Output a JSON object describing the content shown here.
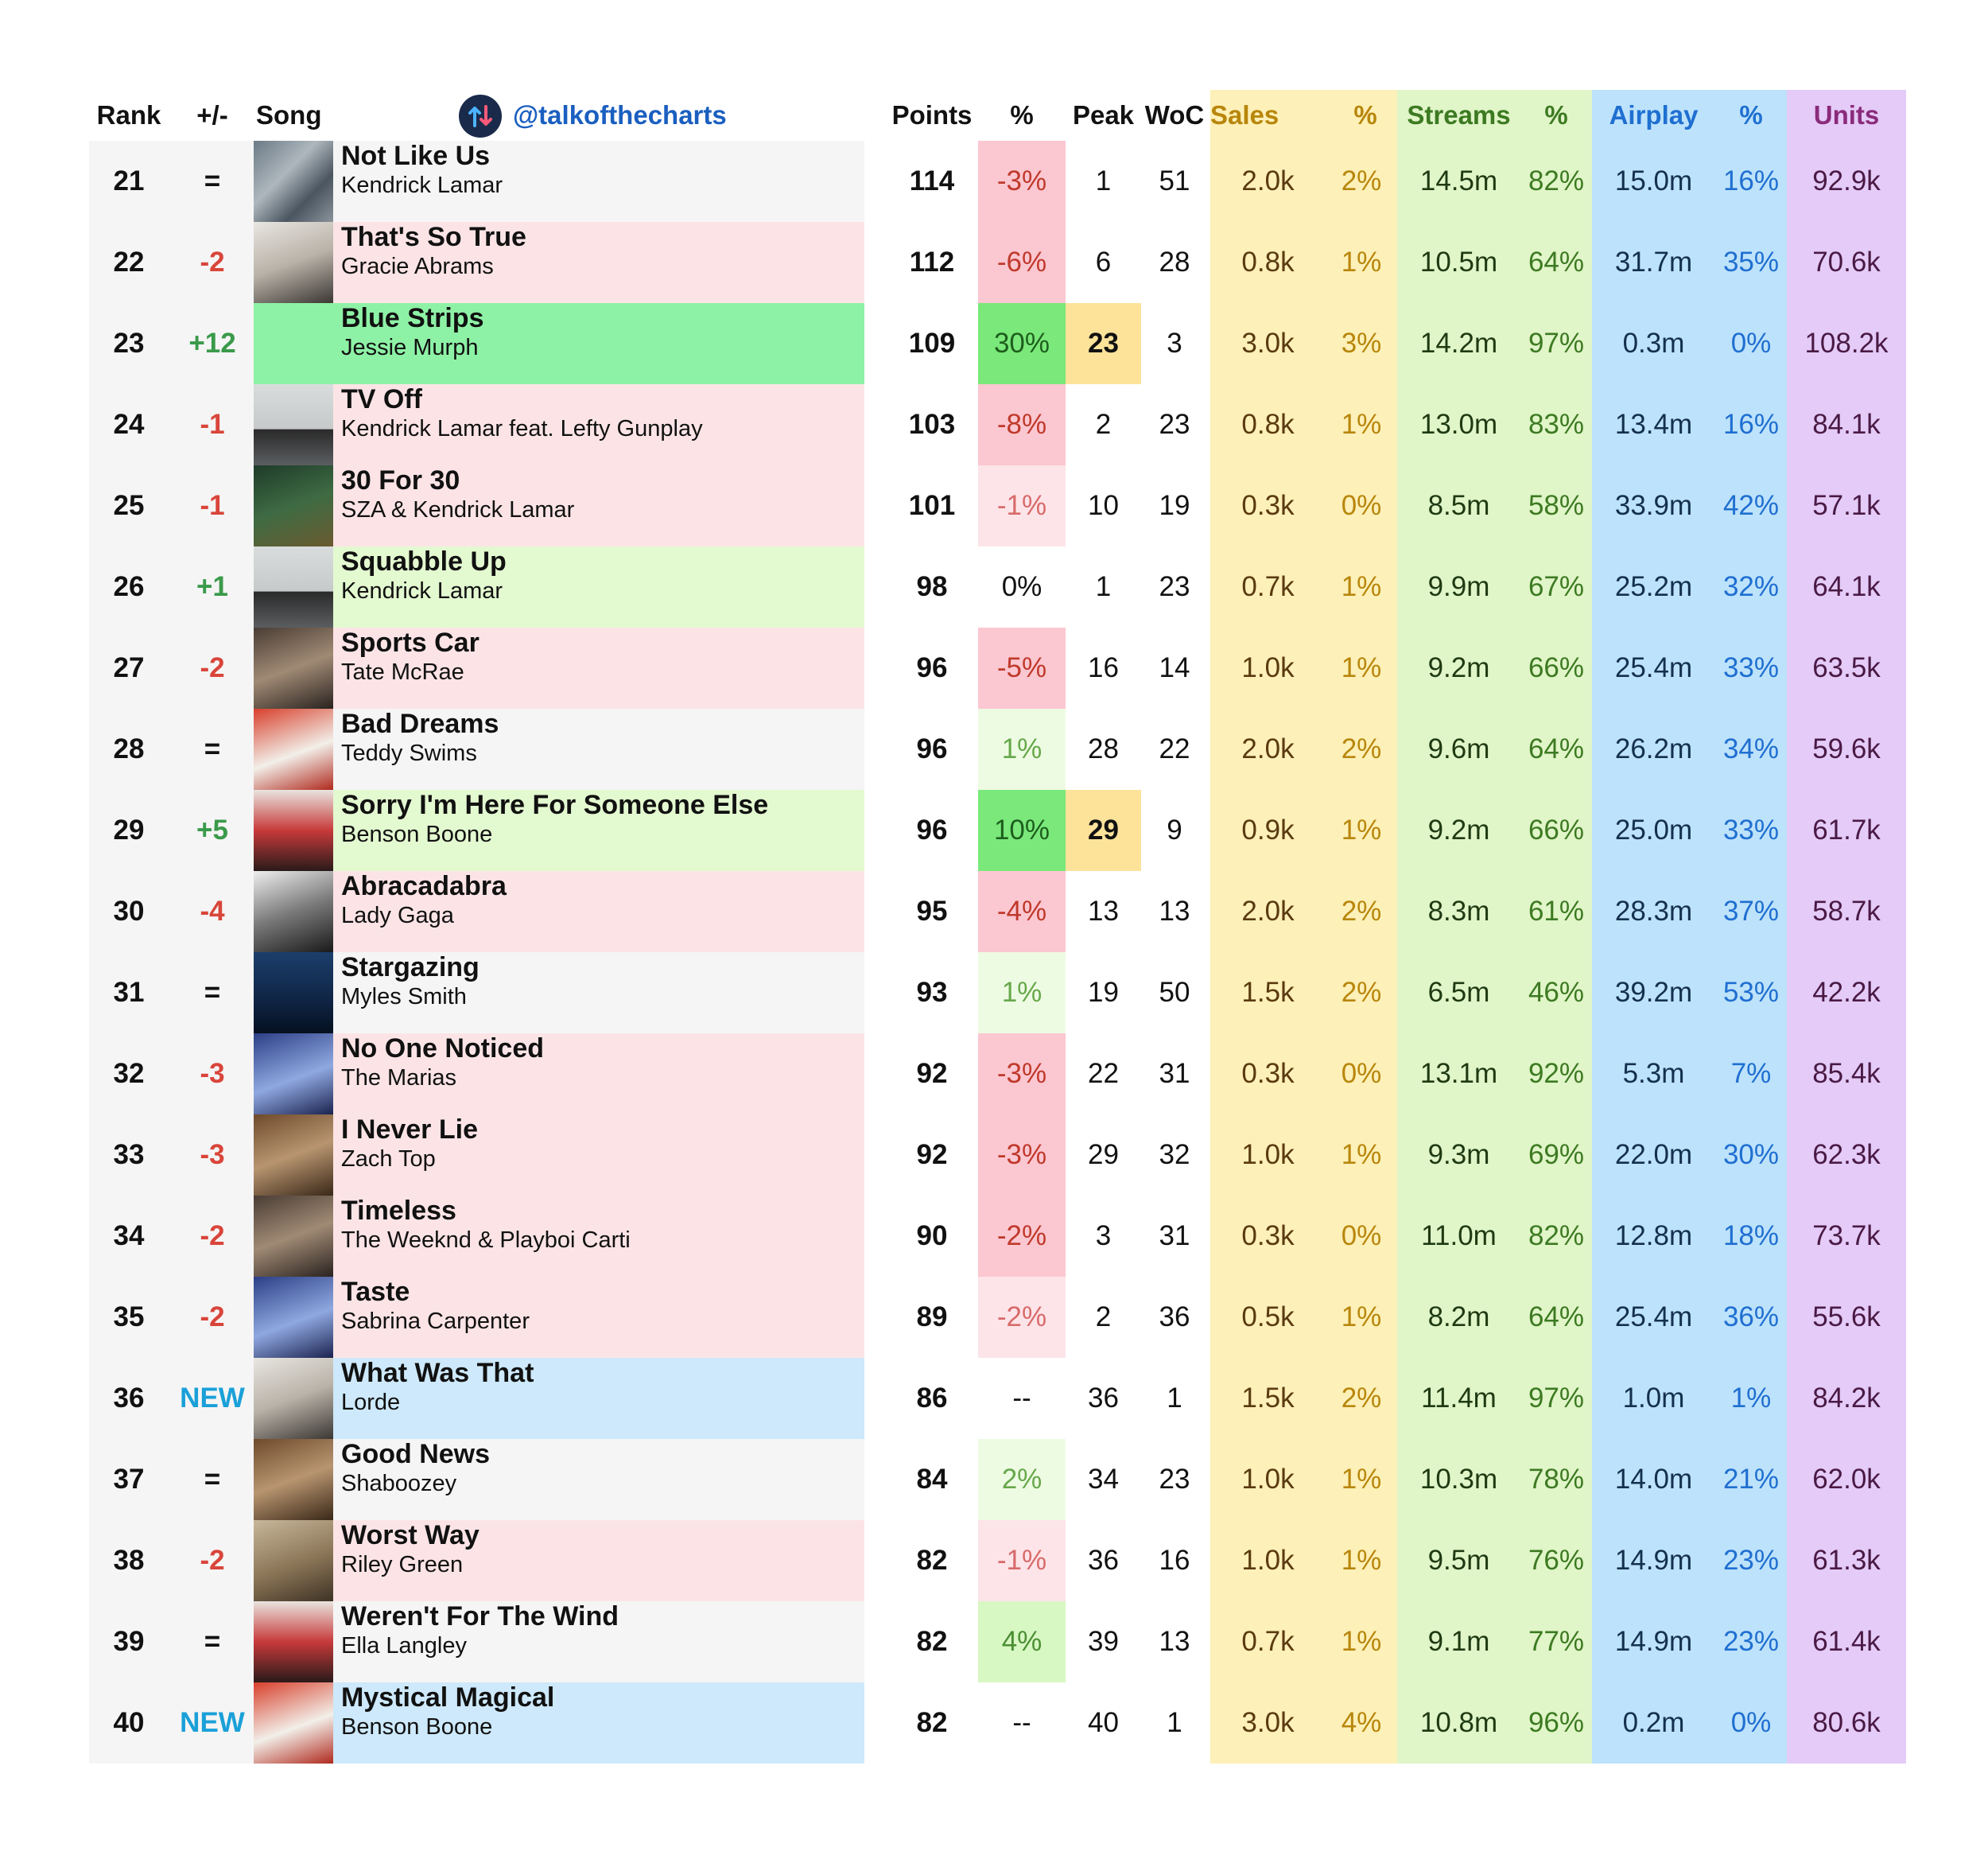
{
  "header": {
    "rank": "Rank",
    "change": "+/-",
    "song": "Song",
    "handle": "@talkofthecharts",
    "points": "Points",
    "points_pct": "%",
    "peak": "Peak",
    "woc": "WoC",
    "sales": "Sales",
    "sales_pct": "%",
    "streams": "Streams",
    "streams_pct": "%",
    "airplay": "Airplay",
    "airplay_pct": "%",
    "units": "Units"
  },
  "colors": {
    "up": "#3a9a4a",
    "down": "#d9453a",
    "new": "#1aa0d8",
    "row_down": "#fce4e6",
    "row_up": "#e3f9d0",
    "row_big_up": "#8ef2a6",
    "row_new": "#cde9fb",
    "row_same": "#f5f5f5",
    "peak_highlight": "#fde39a",
    "sales_header": "#b8860b",
    "streams_header": "#3d7a22",
    "airplay_header": "#1f6fd1",
    "units_header": "#8a2b7a"
  },
  "rows": [
    {
      "rank": "21",
      "change": "=",
      "dir": "same",
      "title": "Not Like Us",
      "artist": "Kendrick Lamar",
      "points": "114",
      "pct": "-3%",
      "pct_tone": "down2",
      "peak": "1",
      "peak_hl": false,
      "woc": "51",
      "sales": "2.0k",
      "sales_pct": "2%",
      "streams": "14.5m",
      "streams_pct": "82%",
      "airplay": "15.0m",
      "airplay_pct": "16%",
      "units": "92.9k",
      "cover": "cover-aerial",
      "rowbg": "same"
    },
    {
      "rank": "22",
      "change": "-2",
      "dir": "down",
      "title": "That's So True",
      "artist": "Gracie Abrams",
      "points": "112",
      "pct": "-6%",
      "pct_tone": "down2",
      "peak": "6",
      "peak_hl": false,
      "woc": "28",
      "sales": "0.8k",
      "sales_pct": "1%",
      "streams": "10.5m",
      "streams_pct": "64%",
      "airplay": "31.7m",
      "airplay_pct": "35%",
      "units": "70.6k",
      "cover": "cover-portrait",
      "rowbg": "down"
    },
    {
      "rank": "23",
      "change": "+12",
      "dir": "up",
      "title": "Blue Strips",
      "artist": "Jessie Murph",
      "points": "109",
      "pct": "30%",
      "pct_tone": "up2",
      "peak": "23",
      "peak_hl": true,
      "woc": "3",
      "sales": "3.0k",
      "sales_pct": "3%",
      "streams": "14.2m",
      "streams_pct": "97%",
      "airplay": "0.3m",
      "airplay_pct": "0%",
      "units": "108.2k",
      "cover": "none",
      "rowbg": "bigup"
    },
    {
      "rank": "24",
      "change": "-1",
      "dir": "down",
      "title": "TV Off",
      "artist": "Kendrick Lamar feat. Lefty Gunplay",
      "points": "103",
      "pct": "-8%",
      "pct_tone": "down2",
      "peak": "2",
      "peak_hl": false,
      "woc": "23",
      "sales": "0.8k",
      "sales_pct": "1%",
      "streams": "13.0m",
      "streams_pct": "83%",
      "airplay": "13.4m",
      "airplay_pct": "16%",
      "units": "84.1k",
      "cover": "cover-car",
      "rowbg": "down"
    },
    {
      "rank": "25",
      "change": "-1",
      "dir": "down",
      "title": "30 For 30",
      "artist": "SZA & Kendrick Lamar",
      "points": "101",
      "pct": "-1%",
      "pct_tone": "down1",
      "peak": "10",
      "peak_hl": false,
      "woc": "19",
      "sales": "0.3k",
      "sales_pct": "0%",
      "streams": "8.5m",
      "streams_pct": "58%",
      "airplay": "33.9m",
      "airplay_pct": "42%",
      "units": "57.1k",
      "cover": "cover-forest",
      "rowbg": "down"
    },
    {
      "rank": "26",
      "change": "+1",
      "dir": "up",
      "title": "Squabble Up",
      "artist": "Kendrick Lamar",
      "points": "98",
      "pct": "0%",
      "pct_tone": "none",
      "peak": "1",
      "peak_hl": false,
      "woc": "23",
      "sales": "0.7k",
      "sales_pct": "1%",
      "streams": "9.9m",
      "streams_pct": "67%",
      "airplay": "25.2m",
      "airplay_pct": "32%",
      "units": "64.1k",
      "cover": "cover-car",
      "rowbg": "up"
    },
    {
      "rank": "27",
      "change": "-2",
      "dir": "down",
      "title": "Sports Car",
      "artist": "Tate McRae",
      "points": "96",
      "pct": "-5%",
      "pct_tone": "down2",
      "peak": "16",
      "peak_hl": false,
      "woc": "14",
      "sales": "1.0k",
      "sales_pct": "1%",
      "streams": "9.2m",
      "streams_pct": "66%",
      "airplay": "25.4m",
      "airplay_pct": "33%",
      "units": "63.5k",
      "cover": "cover-dark",
      "rowbg": "down"
    },
    {
      "rank": "28",
      "change": "=",
      "dir": "same",
      "title": "Bad Dreams",
      "artist": "Teddy Swims",
      "points": "96",
      "pct": "1%",
      "pct_tone": "up1",
      "peak": "28",
      "peak_hl": false,
      "woc": "22",
      "sales": "2.0k",
      "sales_pct": "2%",
      "streams": "9.6m",
      "streams_pct": "64%",
      "airplay": "26.2m",
      "airplay_pct": "34%",
      "units": "59.6k",
      "cover": "cover-red",
      "rowbg": "same"
    },
    {
      "rank": "29",
      "change": "+5",
      "dir": "up",
      "title": "Sorry I'm Here For Someone Else",
      "artist": "Benson Boone",
      "points": "96",
      "pct": "10%",
      "pct_tone": "up2",
      "peak": "29",
      "peak_hl": true,
      "woc": "9",
      "sales": "0.9k",
      "sales_pct": "1%",
      "streams": "9.2m",
      "streams_pct": "66%",
      "airplay": "25.0m",
      "airplay_pct": "33%",
      "units": "61.7k",
      "cover": "cover-redcar",
      "rowbg": "up"
    },
    {
      "rank": "30",
      "change": "-4",
      "dir": "down",
      "title": "Abracadabra",
      "artist": "Lady Gaga",
      "points": "95",
      "pct": "-4%",
      "pct_tone": "down2",
      "peak": "13",
      "peak_hl": false,
      "woc": "13",
      "sales": "2.0k",
      "sales_pct": "2%",
      "streams": "8.3m",
      "streams_pct": "61%",
      "airplay": "28.3m",
      "airplay_pct": "37%",
      "units": "58.7k",
      "cover": "cover-bw",
      "rowbg": "down"
    },
    {
      "rank": "31",
      "change": "=",
      "dir": "same",
      "title": "Stargazing",
      "artist": "Myles Smith",
      "points": "93",
      "pct": "1%",
      "pct_tone": "up1",
      "peak": "19",
      "peak_hl": false,
      "woc": "50",
      "sales": "1.5k",
      "sales_pct": "2%",
      "streams": "6.5m",
      "streams_pct": "46%",
      "airplay": "39.2m",
      "airplay_pct": "53%",
      "units": "42.2k",
      "cover": "cover-navy",
      "rowbg": "same"
    },
    {
      "rank": "32",
      "change": "-3",
      "dir": "down",
      "title": "No One Noticed",
      "artist": "The Marias",
      "points": "92",
      "pct": "-3%",
      "pct_tone": "down2",
      "peak": "22",
      "peak_hl": false,
      "woc": "31",
      "sales": "0.3k",
      "sales_pct": "0%",
      "streams": "13.1m",
      "streams_pct": "92%",
      "airplay": "5.3m",
      "airplay_pct": "7%",
      "units": "85.4k",
      "cover": "cover-blue",
      "rowbg": "down"
    },
    {
      "rank": "33",
      "change": "-3",
      "dir": "down",
      "title": "I Never Lie",
      "artist": "Zach Top",
      "points": "92",
      "pct": "-3%",
      "pct_tone": "down2",
      "peak": "29",
      "peak_hl": false,
      "woc": "32",
      "sales": "1.0k",
      "sales_pct": "1%",
      "streams": "9.3m",
      "streams_pct": "69%",
      "airplay": "22.0m",
      "airplay_pct": "30%",
      "units": "62.3k",
      "cover": "cover-brown",
      "rowbg": "down"
    },
    {
      "rank": "34",
      "change": "-2",
      "dir": "down",
      "title": "Timeless",
      "artist": "The Weeknd & Playboi Carti",
      "points": "90",
      "pct": "-2%",
      "pct_tone": "down2",
      "peak": "3",
      "peak_hl": false,
      "woc": "31",
      "sales": "0.3k",
      "sales_pct": "0%",
      "streams": "11.0m",
      "streams_pct": "82%",
      "airplay": "12.8m",
      "airplay_pct": "18%",
      "units": "73.7k",
      "cover": "cover-dark",
      "rowbg": "down"
    },
    {
      "rank": "35",
      "change": "-2",
      "dir": "down",
      "title": "Taste",
      "artist": "Sabrina Carpenter",
      "points": "89",
      "pct": "-2%",
      "pct_tone": "down1",
      "peak": "2",
      "peak_hl": false,
      "woc": "36",
      "sales": "0.5k",
      "sales_pct": "1%",
      "streams": "8.2m",
      "streams_pct": "64%",
      "airplay": "25.4m",
      "airplay_pct": "36%",
      "units": "55.6k",
      "cover": "cover-blue",
      "rowbg": "down"
    },
    {
      "rank": "36",
      "change": "NEW",
      "dir": "new",
      "title": "What Was That",
      "artist": "Lorde",
      "points": "86",
      "pct": "--",
      "pct_tone": "none",
      "peak": "36",
      "peak_hl": false,
      "woc": "1",
      "sales": "1.5k",
      "sales_pct": "2%",
      "streams": "11.4m",
      "streams_pct": "97%",
      "airplay": "1.0m",
      "airplay_pct": "1%",
      "units": "84.2k",
      "cover": "cover-portrait",
      "rowbg": "new"
    },
    {
      "rank": "37",
      "change": "=",
      "dir": "same",
      "title": "Good News",
      "artist": "Shaboozey",
      "points": "84",
      "pct": "2%",
      "pct_tone": "up1",
      "peak": "34",
      "peak_hl": false,
      "woc": "23",
      "sales": "1.0k",
      "sales_pct": "1%",
      "streams": "10.3m",
      "streams_pct": "78%",
      "airplay": "14.0m",
      "airplay_pct": "21%",
      "units": "62.0k",
      "cover": "cover-brown",
      "rowbg": "same"
    },
    {
      "rank": "38",
      "change": "-2",
      "dir": "down",
      "title": "Worst Way",
      "artist": "Riley Green",
      "points": "82",
      "pct": "-1%",
      "pct_tone": "down1",
      "peak": "36",
      "peak_hl": false,
      "woc": "16",
      "sales": "1.0k",
      "sales_pct": "1%",
      "streams": "9.5m",
      "streams_pct": "76%",
      "airplay": "14.9m",
      "airplay_pct": "23%",
      "units": "61.3k",
      "cover": "cover-sepia",
      "rowbg": "down"
    },
    {
      "rank": "39",
      "change": "=",
      "dir": "same",
      "title": "Weren't For The Wind",
      "artist": "Ella Langley",
      "points": "82",
      "pct": "4%",
      "pct_tone": "up1b",
      "peak": "39",
      "peak_hl": false,
      "woc": "13",
      "sales": "0.7k",
      "sales_pct": "1%",
      "streams": "9.1m",
      "streams_pct": "77%",
      "airplay": "14.9m",
      "airplay_pct": "23%",
      "units": "61.4k",
      "cover": "cover-redcar",
      "rowbg": "same"
    },
    {
      "rank": "40",
      "change": "NEW",
      "dir": "new",
      "title": "Mystical Magical",
      "artist": "Benson Boone",
      "points": "82",
      "pct": "--",
      "pct_tone": "none",
      "peak": "40",
      "peak_hl": false,
      "woc": "1",
      "sales": "3.0k",
      "sales_pct": "4%",
      "streams": "10.8m",
      "streams_pct": "96%",
      "airplay": "0.2m",
      "airplay_pct": "0%",
      "units": "80.6k",
      "cover": "cover-red",
      "rowbg": "new"
    }
  ]
}
